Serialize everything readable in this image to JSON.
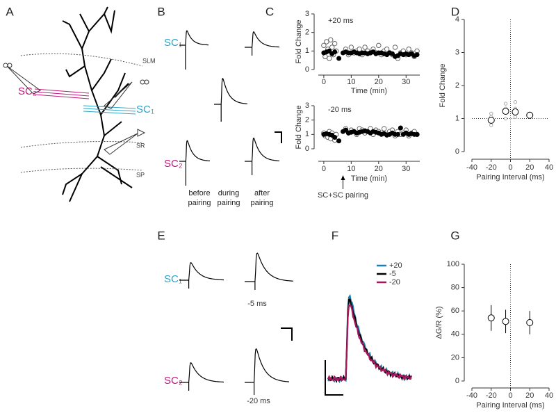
{
  "panel_labels": [
    "A",
    "B",
    "C",
    "D",
    "E",
    "F",
    "G"
  ],
  "schematic": {
    "layers": [
      "SLM",
      "SR",
      "SP"
    ],
    "inputs": [
      "SC₂",
      "SC₁"
    ]
  },
  "panel_B": {
    "rows": [
      "SC₁",
      "SC₂"
    ],
    "columns": [
      "before pairing",
      "during pairing",
      "after pairing"
    ]
  },
  "panel_E": {
    "rows": [
      "SC₁",
      "SC₂"
    ],
    "intervals": [
      "-5 ms",
      "-20 ms"
    ]
  },
  "panel_F": {
    "series": [
      {
        "name": "+20",
        "color": "#1f7fb0"
      },
      {
        "name": "-5",
        "color": "#000000"
      },
      {
        "name": "-20",
        "color": "#a8175e"
      }
    ]
  },
  "chart_data": [
    {
      "type": "scatter",
      "title": "+20 ms",
      "xlabel": "Time (min)",
      "ylabel": "Fold Change",
      "xlim": [
        -2,
        35
      ],
      "ylim": [
        0,
        3
      ],
      "xticks": [
        0,
        10,
        20,
        30
      ],
      "yticks": [
        0,
        1,
        2,
        3
      ],
      "series": [
        {
          "marker": "open",
          "color": "#666666",
          "x": [
            0,
            0.5,
            1,
            1.5,
            2,
            2.5,
            3,
            3.5,
            4,
            4.5,
            8,
            9,
            10,
            11,
            12,
            13,
            14,
            15,
            16,
            17,
            18,
            19,
            20,
            21,
            22,
            23,
            24,
            25,
            26,
            27,
            28,
            29,
            30,
            31,
            32,
            33,
            34
          ],
          "values": [
            1.3,
            0.7,
            1.5,
            1.1,
            0.6,
            1.6,
            1.2,
            0.8,
            1.4,
            1.0,
            1.1,
            0.8,
            1.2,
            0.9,
            1.0,
            1.1,
            0.8,
            1.2,
            1.0,
            0.9,
            1.1,
            0.9,
            1.3,
            0.8,
            1.0,
            1.1,
            0.9,
            0.8,
            1.2,
            0.6,
            0.9,
            1.0,
            0.8,
            1.1,
            0.9,
            0.7,
            1.0
          ]
        },
        {
          "marker": "filled",
          "color": "#000000",
          "x": [
            0,
            1,
            2,
            3,
            4,
            5.5,
            7,
            8,
            9,
            10,
            11,
            12,
            13,
            14,
            15,
            16,
            17,
            18,
            19,
            20,
            21,
            22,
            23,
            24,
            25,
            26,
            27,
            28,
            29,
            30,
            31,
            32,
            33,
            34
          ],
          "values": [
            0.9,
            0.95,
            1.0,
            0.85,
            0.95,
            0.6,
            0.9,
            0.95,
            0.9,
            0.9,
            0.95,
            0.9,
            0.85,
            0.9,
            0.9,
            0.85,
            0.9,
            0.95,
            0.85,
            0.9,
            0.9,
            0.85,
            0.8,
            0.9,
            0.85,
            0.7,
            0.75,
            0.85,
            0.8,
            0.85,
            0.8,
            0.85,
            0.75,
            0.8
          ]
        }
      ]
    },
    {
      "type": "scatter",
      "title": "-20 ms",
      "xlabel": "Time (min)",
      "ylabel": "Fold Change",
      "xlim": [
        -2,
        35
      ],
      "ylim": [
        0,
        3
      ],
      "xticks": [
        0,
        10,
        20,
        30
      ],
      "yticks": [
        0,
        1,
        2,
        3
      ],
      "annotation": {
        "text": "SC+SC pairing",
        "x": 7
      },
      "series": [
        {
          "marker": "open",
          "color": "#666666",
          "x": [
            0,
            0.5,
            1,
            1.5,
            2,
            2.5,
            3,
            3.5,
            4,
            4.5,
            8,
            9,
            10,
            11,
            12,
            13,
            14,
            15,
            16,
            17,
            18,
            19,
            20,
            21,
            22,
            23,
            24,
            25,
            26,
            27,
            28,
            29,
            30,
            31,
            32,
            33,
            34
          ],
          "values": [
            1.1,
            0.9,
            1.0,
            0.8,
            1.2,
            0.7,
            1.1,
            0.9,
            0.6,
            1.0,
            1.4,
            1.1,
            1.3,
            1.2,
            1.0,
            1.4,
            1.3,
            1.1,
            1.2,
            1.4,
            1.0,
            1.3,
            1.2,
            1.1,
            1.4,
            1.0,
            1.2,
            1.3,
            0.9,
            1.2,
            1.0,
            1.1,
            1.3,
            0.9,
            1.1,
            1.2,
            1.0
          ]
        },
        {
          "marker": "filled",
          "color": "#000000",
          "x": [
            0,
            1,
            2,
            3,
            4,
            5.5,
            7,
            8,
            9,
            10,
            11,
            12,
            13,
            14,
            15,
            16,
            17,
            18,
            19,
            20,
            21,
            22,
            23,
            24,
            25,
            26,
            27,
            28,
            29,
            30,
            31,
            32,
            33,
            34
          ],
          "values": [
            1.0,
            1.05,
            1.0,
            0.95,
            0.8,
            0.55,
            1.2,
            1.3,
            1.1,
            1.15,
            1.2,
            1.1,
            1.15,
            1.2,
            1.25,
            1.2,
            1.1,
            1.2,
            1.15,
            1.1,
            1.0,
            1.05,
            0.95,
            1.0,
            1.1,
            1.0,
            1.0,
            1.45,
            1.0,
            1.1,
            1.0,
            1.05,
            1.0,
            1.0
          ]
        }
      ]
    },
    {
      "type": "scatter",
      "xlabel": "Pairing Interval (ms)",
      "ylabel": "Fold Change",
      "xlim": [
        -40,
        40
      ],
      "ylim": [
        0,
        4
      ],
      "xticks": [
        -40,
        -20,
        0,
        20,
        40
      ],
      "yticks": [
        0,
        1,
        2,
        3,
        4
      ],
      "vline": 0,
      "hline": 1,
      "series": [
        {
          "marker": "open-small",
          "color": "#aaaaaa",
          "x": [
            -20,
            -20,
            -20,
            -5,
            -5,
            -5,
            5,
            5,
            5,
            20
          ],
          "values": [
            0.8,
            1.05,
            1.15,
            1.0,
            1.3,
            1.45,
            1.05,
            1.3,
            1.5,
            1.15
          ]
        },
        {
          "marker": "open-large",
          "color": "#000000",
          "x": [
            -20,
            -5,
            5,
            20
          ],
          "values": [
            0.95,
            1.22,
            1.2,
            1.1
          ]
        }
      ]
    },
    {
      "type": "scatter",
      "xlabel": "Pairing Interval (ms)",
      "ylabel": "ΔG/R (%)",
      "xlim": [
        -40,
        40
      ],
      "ylim": [
        0,
        100
      ],
      "xticks": [
        -40,
        -20,
        0,
        20,
        40
      ],
      "yticks": [
        0,
        20,
        40,
        60,
        80,
        100
      ],
      "vline": 0,
      "series": [
        {
          "marker": "open-large",
          "color": "#000000",
          "x": [
            -20,
            -5,
            20
          ],
          "values": [
            54,
            51,
            50
          ],
          "errors": [
            11,
            10,
            10
          ]
        }
      ]
    }
  ]
}
